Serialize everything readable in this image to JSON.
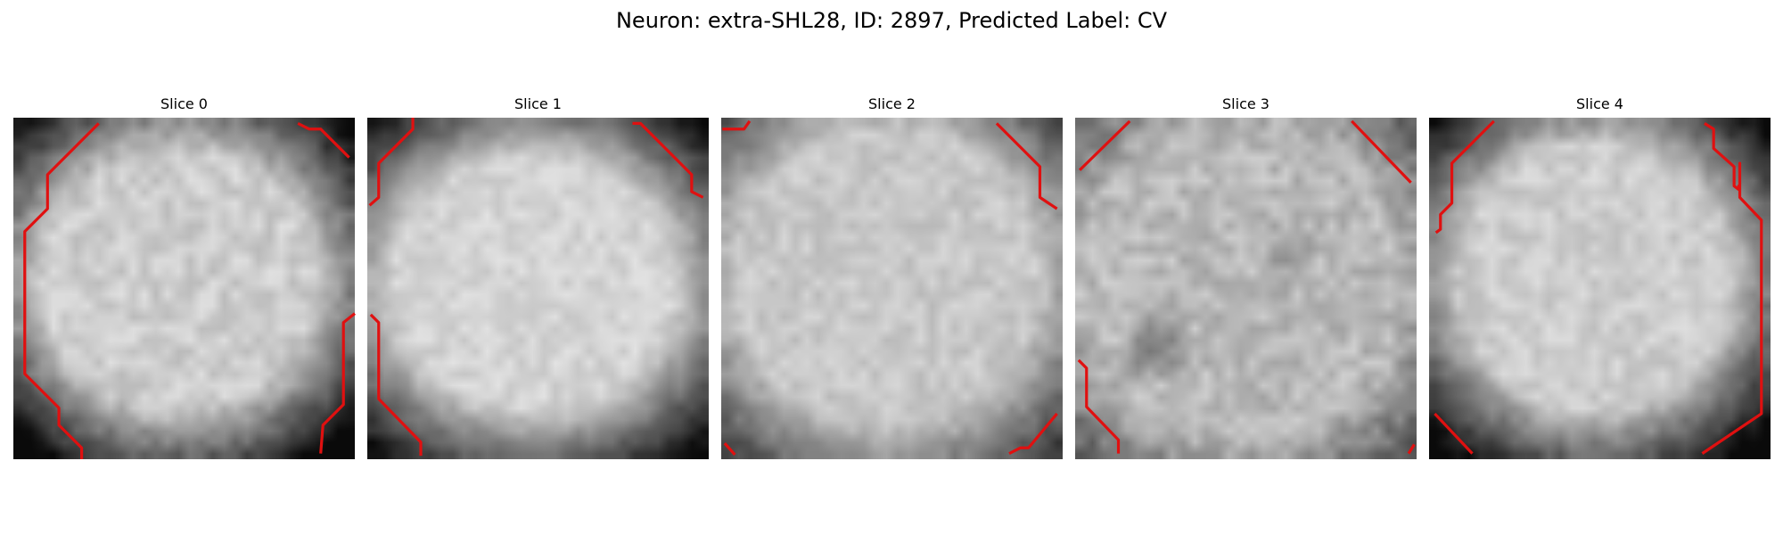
{
  "figure": {
    "title": "Neuron: extra-SHL28, ID: 2897, Predicted Label: CV",
    "colormap": "gray",
    "contour_color": "#e01010"
  },
  "slices": [
    {
      "label": "Slice 0"
    },
    {
      "label": "Slice 1"
    },
    {
      "label": "Slice 2"
    },
    {
      "label": "Slice 3"
    },
    {
      "label": "Slice 4"
    }
  ]
}
